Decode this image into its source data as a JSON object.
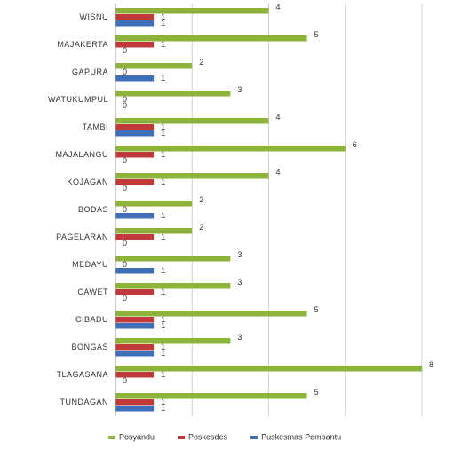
{
  "chart_data": {
    "type": "hbar",
    "categories": [
      "WISNU",
      "MAJAKERTA",
      "GAPURA",
      "WATUKUMPUL",
      "TAMBI",
      "MAJALANGU",
      "KOJAGAN",
      "BODAS",
      "PAGELARAN",
      "MEDAYU",
      "CAWET",
      "CIBADU",
      "BONGAS",
      "TLAGASANA",
      "TUNDAGAN"
    ],
    "series": [
      {
        "name": "Posyandu",
        "color": "#8db33a",
        "values": [
          4,
          5,
          2,
          3,
          4,
          6,
          4,
          2,
          2,
          3,
          3,
          5,
          3,
          8,
          5
        ]
      },
      {
        "name": "Poskesdes",
        "color": "#c0393b",
        "values": [
          1,
          1,
          0,
          0,
          1,
          1,
          1,
          0,
          1,
          0,
          1,
          1,
          1,
          1,
          1
        ]
      },
      {
        "name": "Puskesmas Pembantu",
        "color": "#3f6fb8",
        "values": [
          1,
          0,
          1,
          0,
          1,
          0,
          0,
          1,
          0,
          1,
          0,
          1,
          1,
          0,
          1
        ]
      }
    ],
    "xlim": [
      0,
      8
    ],
    "xticks": [
      0,
      2,
      4,
      6,
      8
    ],
    "grid": true,
    "legend": "bottom"
  }
}
